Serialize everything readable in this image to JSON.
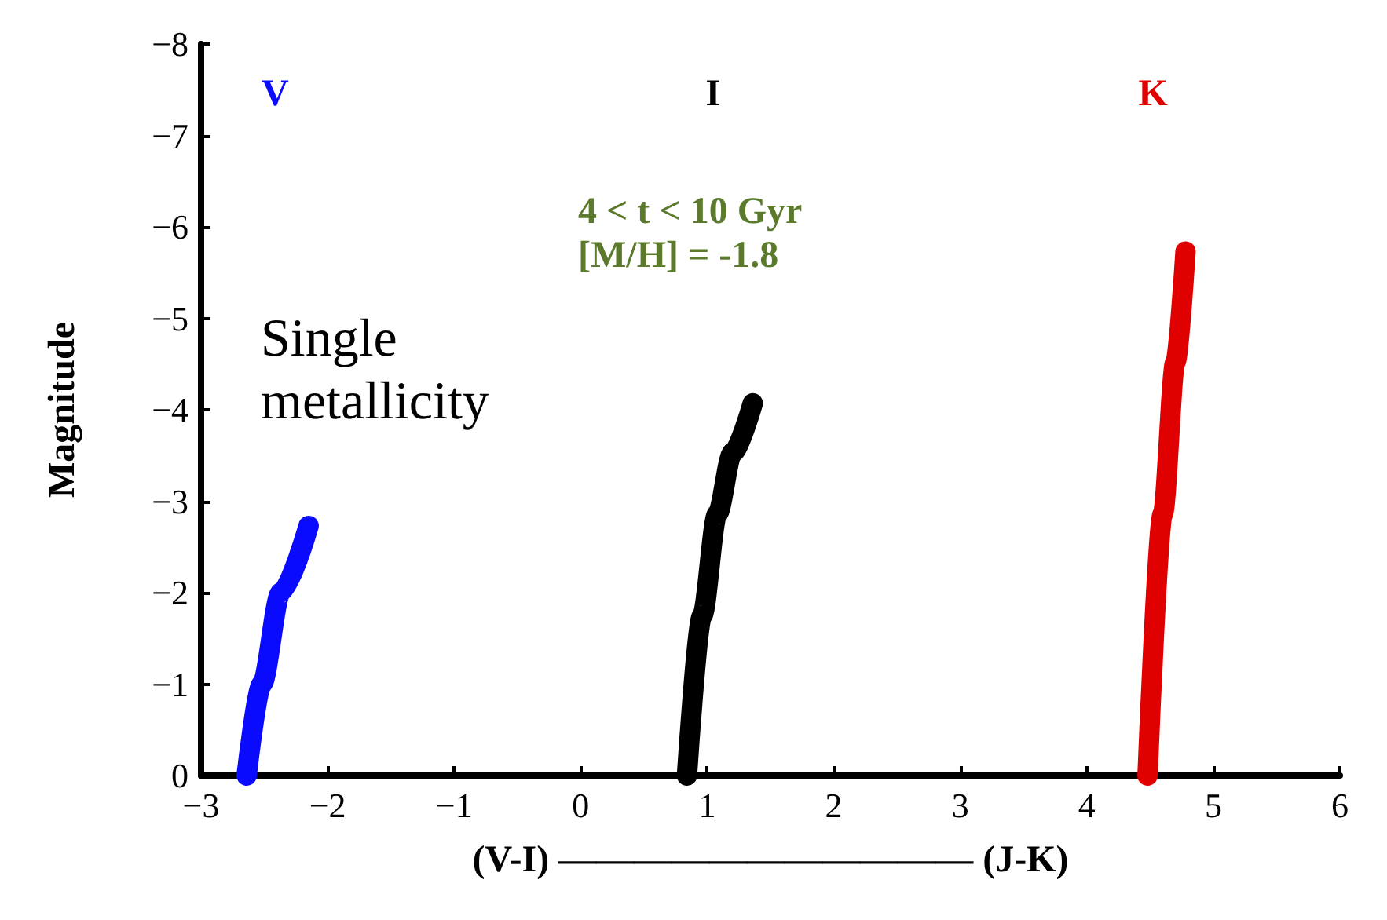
{
  "chart_data": {
    "type": "line",
    "xlabel": "(V-I) ——————————— (J-K)",
    "ylabel": "Magnitude",
    "xlim": [
      -3,
      6
    ],
    "xticks": [
      -3,
      -2,
      -1,
      0,
      1,
      2,
      3,
      4,
      5,
      6
    ],
    "ylim": [
      0,
      -8
    ],
    "yticks": [
      0,
      -1,
      -2,
      -3,
      -4,
      -5,
      -6,
      -7,
      -8
    ],
    "grid": false,
    "legend": false,
    "line_style": "solid",
    "annotations": [
      "4 < t < 10 Gyr",
      "[M/H] = -1.8",
      "Single metallicity"
    ],
    "series": [
      {
        "name": "V",
        "color": "#0a0aff",
        "x": [
          -2.64,
          -2.52,
          -2.37,
          -2.15
        ],
        "values": [
          0,
          -1.0,
          -2.0,
          -2.73
        ]
      },
      {
        "name": "I",
        "color": "#000000",
        "x": [
          0.84,
          0.96,
          1.08,
          1.2,
          1.36
        ],
        "values": [
          0,
          -1.75,
          -2.86,
          -3.53,
          -4.07
        ]
      },
      {
        "name": "K",
        "color": "#e00000",
        "x": [
          4.48,
          4.6,
          4.7,
          4.78
        ],
        "values": [
          0,
          -2.86,
          -4.52,
          -5.73
        ]
      }
    ]
  }
}
